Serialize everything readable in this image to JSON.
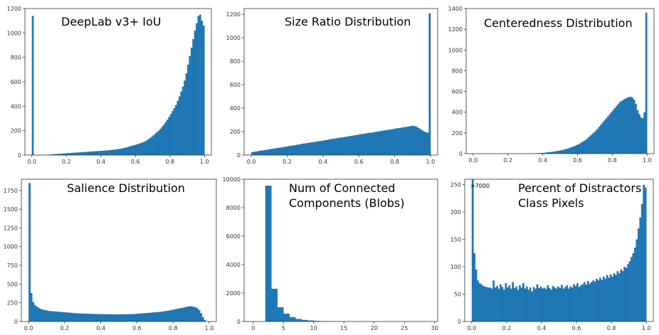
{
  "chart_data": [
    {
      "id": "iou",
      "type": "bar",
      "title": "DeepLab v3+ IoU",
      "xlim": [
        -0.04,
        1.04
      ],
      "ylim": [
        0,
        1200
      ],
      "xticks": [
        {
          "v": 0.0,
          "label": "0.0"
        },
        {
          "v": 0.2,
          "label": "0.2"
        },
        {
          "v": 0.4,
          "label": "0.4"
        },
        {
          "v": 0.6,
          "label": "0.6"
        },
        {
          "v": 0.8,
          "label": "0.8"
        },
        {
          "v": 1.0,
          "label": "1.0"
        }
      ],
      "yticks": [
        {
          "v": 0,
          "label": "0"
        },
        {
          "v": 200,
          "label": "200"
        },
        {
          "v": 400,
          "label": "400"
        },
        {
          "v": 600,
          "label": "600"
        },
        {
          "v": 800,
          "label": "800"
        },
        {
          "v": 1000,
          "label": "1000"
        },
        {
          "v": 1200,
          "label": "1200"
        }
      ],
      "bins": {
        "start": 0.0,
        "width": 0.01
      },
      "values": [
        1140,
        0,
        0,
        0,
        0,
        0,
        0,
        0,
        0,
        0,
        5,
        6,
        7,
        8,
        9,
        10,
        11,
        12,
        13,
        14,
        15,
        16,
        17,
        18,
        19,
        20,
        21,
        22,
        23,
        24,
        25,
        26,
        27,
        28,
        29,
        30,
        31,
        32,
        33,
        34,
        35,
        36,
        37,
        38,
        39,
        40,
        42,
        44,
        46,
        48,
        50,
        52,
        55,
        58,
        62,
        66,
        70,
        74,
        78,
        82,
        86,
        90,
        95,
        100,
        106,
        112,
        120,
        130,
        140,
        150,
        162,
        175,
        188,
        200,
        215,
        232,
        250,
        270,
        290,
        312,
        335,
        360,
        385,
        410,
        445,
        480,
        520,
        560,
        610,
        670,
        740,
        810,
        880,
        950,
        1020,
        1080,
        1140,
        1150,
        1100,
        1060
      ]
    },
    {
      "id": "size-ratio",
      "type": "bar",
      "title": "Size Ratio Distribution",
      "xlim": [
        -0.04,
        1.04
      ],
      "ylim": [
        0,
        1250
      ],
      "xticks": [
        {
          "v": 0.0,
          "label": "0.0"
        },
        {
          "v": 0.2,
          "label": "0.2"
        },
        {
          "v": 0.4,
          "label": "0.4"
        },
        {
          "v": 0.6,
          "label": "0.6"
        },
        {
          "v": 0.8,
          "label": "0.8"
        },
        {
          "v": 1.0,
          "label": "1.0"
        }
      ],
      "yticks": [
        {
          "v": 0,
          "label": "0"
        },
        {
          "v": 200,
          "label": "200"
        },
        {
          "v": 400,
          "label": "400"
        },
        {
          "v": 600,
          "label": "600"
        },
        {
          "v": 800,
          "label": "800"
        },
        {
          "v": 1000,
          "label": "1000"
        },
        {
          "v": 1200,
          "label": "1200"
        }
      ],
      "bins": {
        "start": 0.0,
        "width": 0.01
      },
      "values": [
        25,
        28,
        30,
        33,
        36,
        38,
        40,
        42,
        45,
        48,
        50,
        53,
        56,
        58,
        60,
        62,
        64,
        66,
        70,
        72,
        75,
        78,
        80,
        82,
        85,
        88,
        90,
        93,
        96,
        99,
        100,
        103,
        106,
        108,
        110,
        112,
        115,
        118,
        120,
        122,
        125,
        128,
        130,
        133,
        136,
        139,
        140,
        143,
        146,
        149,
        150,
        152,
        155,
        158,
        160,
        163,
        166,
        169,
        170,
        173,
        176,
        179,
        180,
        183,
        186,
        189,
        190,
        192,
        195,
        198,
        200,
        203,
        206,
        209,
        210,
        213,
        216,
        219,
        220,
        223,
        226,
        229,
        230,
        233,
        236,
        239,
        240,
        243,
        246,
        249,
        250,
        245,
        240,
        230,
        220,
        210,
        200,
        195,
        190,
        1210
      ]
    },
    {
      "id": "centeredness",
      "type": "bar",
      "title": "Centeredness Distribution",
      "xlim": [
        -0.04,
        1.04
      ],
      "ylim": [
        0,
        1400
      ],
      "xticks": [
        {
          "v": 0.0,
          "label": "0.0"
        },
        {
          "v": 0.2,
          "label": "0.2"
        },
        {
          "v": 0.4,
          "label": "0.4"
        },
        {
          "v": 0.6,
          "label": "0.6"
        },
        {
          "v": 0.8,
          "label": "0.8"
        },
        {
          "v": 1.0,
          "label": "1.0"
        }
      ],
      "yticks": [
        {
          "v": 0,
          "label": "0"
        },
        {
          "v": 200,
          "label": "200"
        },
        {
          "v": 400,
          "label": "400"
        },
        {
          "v": 600,
          "label": "600"
        },
        {
          "v": 800,
          "label": "800"
        },
        {
          "v": 1000,
          "label": "1000"
        },
        {
          "v": 1200,
          "label": "1200"
        },
        {
          "v": 1400,
          "label": "1400"
        }
      ],
      "bins": {
        "start": 0.0,
        "width": 0.01
      },
      "values": [
        0,
        0,
        0,
        0,
        0,
        0,
        0,
        0,
        0,
        0,
        0,
        0,
        0,
        0,
        0,
        0,
        0,
        0,
        0,
        0,
        0,
        0,
        0,
        0,
        0,
        0,
        0,
        0,
        0,
        0,
        1,
        1,
        2,
        2,
        3,
        3,
        4,
        5,
        6,
        7,
        8,
        10,
        12,
        14,
        16,
        18,
        20,
        23,
        26,
        29,
        32,
        36,
        40,
        45,
        50,
        56,
        62,
        68,
        75,
        82,
        90,
        100,
        110,
        120,
        130,
        145,
        160,
        175,
        190,
        205,
        220,
        240,
        260,
        280,
        300,
        320,
        340,
        360,
        380,
        400,
        420,
        440,
        460,
        480,
        500,
        510,
        520,
        530,
        540,
        545,
        550,
        540,
        520,
        480,
        420,
        380,
        350,
        340,
        400,
        1360
      ]
    },
    {
      "id": "salience",
      "type": "bar",
      "title": "Salience Distribution",
      "xlim": [
        -0.04,
        1.04
      ],
      "ylim": [
        0,
        1900
      ],
      "xticks": [
        {
          "v": 0.0,
          "label": "0.0"
        },
        {
          "v": 0.2,
          "label": "0.2"
        },
        {
          "v": 0.4,
          "label": "0.4"
        },
        {
          "v": 0.6,
          "label": "0.6"
        },
        {
          "v": 0.8,
          "label": "0.8"
        },
        {
          "v": 1.0,
          "label": "1.0"
        }
      ],
      "yticks": [
        {
          "v": 0,
          "label": "0"
        },
        {
          "v": 250,
          "label": "250"
        },
        {
          "v": 500,
          "label": "500"
        },
        {
          "v": 750,
          "label": "750"
        },
        {
          "v": 1000,
          "label": "1000"
        },
        {
          "v": 1250,
          "label": "1250"
        },
        {
          "v": 1500,
          "label": "1500"
        },
        {
          "v": 1750,
          "label": "1750"
        }
      ],
      "bins": {
        "start": 0.0,
        "width": 0.01
      },
      "values": [
        1850,
        380,
        260,
        220,
        200,
        185,
        170,
        160,
        155,
        150,
        145,
        140,
        138,
        136,
        134,
        132,
        130,
        128,
        126,
        124,
        122,
        120,
        118,
        116,
        114,
        112,
        110,
        109,
        108,
        107,
        106,
        105,
        104,
        103,
        102,
        101,
        100,
        100,
        100,
        99,
        99,
        98,
        98,
        97,
        97,
        96,
        96,
        95,
        95,
        95,
        95,
        96,
        96,
        97,
        97,
        98,
        98,
        99,
        100,
        102,
        104,
        106,
        108,
        110,
        112,
        114,
        116,
        118,
        120,
        122,
        124,
        126,
        128,
        130,
        134,
        138,
        142,
        146,
        150,
        155,
        160,
        165,
        170,
        175,
        180,
        185,
        190,
        195,
        200,
        205,
        200,
        195,
        190,
        175,
        150,
        110,
        60,
        20,
        0,
        0
      ]
    },
    {
      "id": "connected-components",
      "type": "bar",
      "title": "Num of Connected\nComponents (Blobs)",
      "xlim": [
        -1.5,
        30.5
      ],
      "ylim": [
        0,
        10000
      ],
      "xticks": [
        {
          "v": 0,
          "label": "0"
        },
        {
          "v": 5,
          "label": "5"
        },
        {
          "v": 10,
          "label": "10"
        },
        {
          "v": 15,
          "label": "15"
        },
        {
          "v": 20,
          "label": "20"
        },
        {
          "v": 25,
          "label": "25"
        },
        {
          "v": 30,
          "label": "30"
        }
      ],
      "yticks": [
        {
          "v": 0,
          "label": "0"
        },
        {
          "v": 2000,
          "label": "2000"
        },
        {
          "v": 4000,
          "label": "4000"
        },
        {
          "v": 6000,
          "label": "6000"
        },
        {
          "v": 8000,
          "label": "8000"
        },
        {
          "v": 10000,
          "label": "10000"
        }
      ],
      "bins": {
        "start": 2,
        "width": 1
      },
      "values": [
        9550,
        2300,
        1000,
        550,
        300,
        180,
        110,
        70,
        45,
        30,
        22,
        16,
        12,
        9,
        7,
        5,
        4,
        3,
        2,
        2,
        1,
        1,
        1,
        1,
        1,
        0,
        0
      ]
    },
    {
      "id": "distractors",
      "type": "bar",
      "title": "Percent of Distractors\nClass Pixels",
      "annotation": ">7000",
      "xlim": [
        -0.04,
        1.04
      ],
      "ylim": [
        0,
        260
      ],
      "xticks": [
        {
          "v": 0.0,
          "label": "0.0"
        },
        {
          "v": 0.2,
          "label": "0.2"
        },
        {
          "v": 0.4,
          "label": "0.4"
        },
        {
          "v": 0.6,
          "label": "0.6"
        },
        {
          "v": 0.8,
          "label": "0.8"
        },
        {
          "v": 1.0,
          "label": "1.0"
        }
      ],
      "yticks": [
        {
          "v": 0,
          "label": "0"
        },
        {
          "v": 50,
          "label": "50"
        },
        {
          "v": 100,
          "label": "100"
        },
        {
          "v": 150,
          "label": "150"
        },
        {
          "v": 200,
          "label": "200"
        },
        {
          "v": 250,
          "label": "250"
        }
      ],
      "bins": {
        "start": 0.0,
        "width": 0.01
      },
      "values": [
        7000,
        125,
        95,
        75,
        70,
        68,
        65,
        64,
        63,
        62,
        62,
        60,
        75,
        62,
        65,
        60,
        68,
        63,
        58,
        70,
        62,
        66,
        60,
        72,
        61,
        64,
        58,
        66,
        62,
        70,
        60,
        64,
        58,
        62,
        55,
        63,
        60,
        68,
        61,
        64,
        60,
        62,
        59,
        66,
        61,
        58,
        65,
        62,
        60,
        64,
        61,
        67,
        60,
        63,
        66,
        60,
        64,
        62,
        68,
        65,
        70,
        63,
        66,
        68,
        72,
        67,
        74,
        69,
        72,
        75,
        73,
        78,
        75,
        80,
        76,
        82,
        78,
        85,
        80,
        86,
        82,
        88,
        85,
        92,
        88,
        95,
        92,
        100,
        98,
        105,
        110,
        118,
        125,
        135,
        150,
        170,
        190,
        215,
        250,
        245
      ]
    }
  ]
}
